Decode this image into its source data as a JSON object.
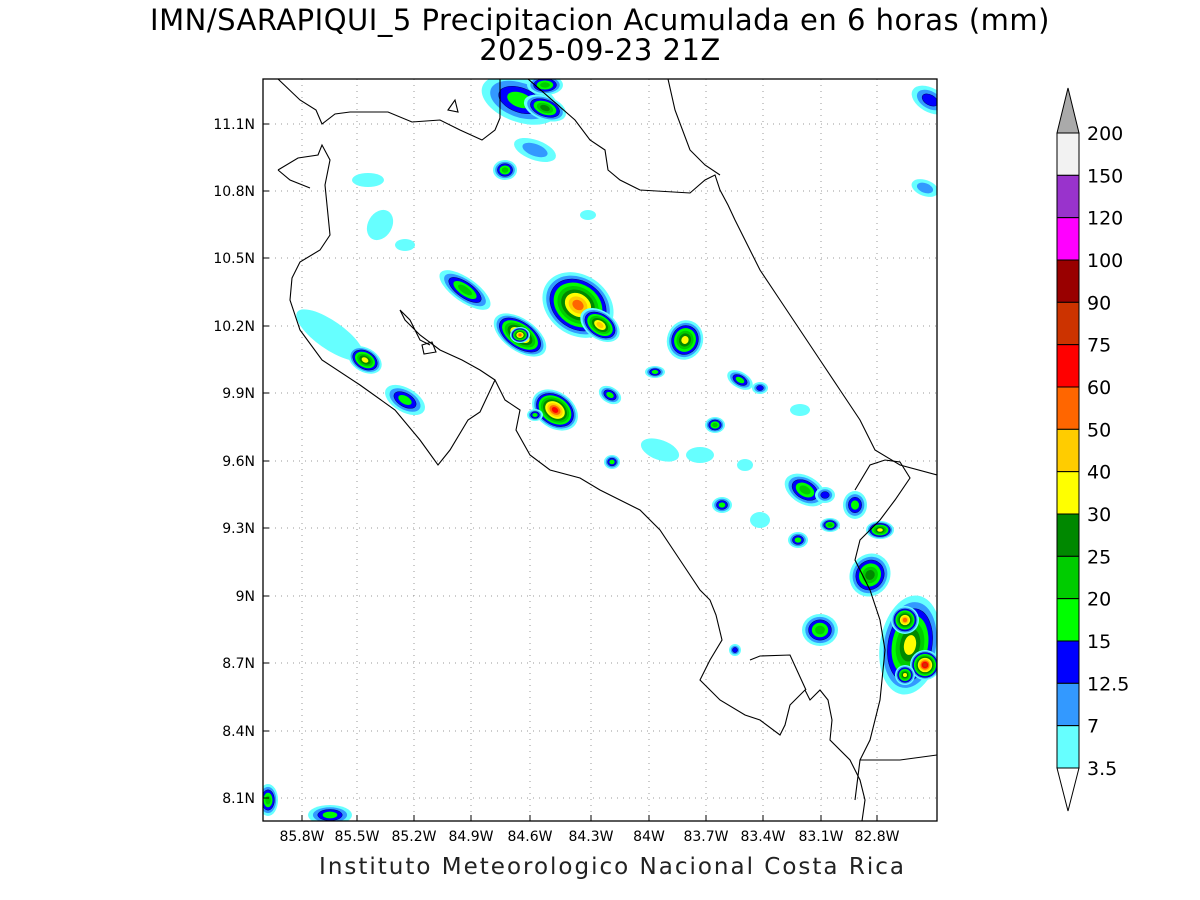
{
  "title": {
    "line1": "IMN/SARAPIQUI_5 Precipitacion Acumulada en 6 horas (mm)",
    "line2": "2025-09-23 21Z"
  },
  "footer": "Instituto Meteorologico Nacional Costa Rica",
  "map": {
    "lat_labels": [
      "11.1N",
      "10.8N",
      "10.5N",
      "10.2N",
      "9.9N",
      "9.6N",
      "9.3N",
      "9N",
      "8.7N",
      "8.4N",
      "8.1N"
    ],
    "lon_labels": [
      "85.8W",
      "85.5W",
      "85.2W",
      "84.9W",
      "84.6W",
      "84.3W",
      "84W",
      "83.7W",
      "83.4W",
      "83.1W",
      "82.8W"
    ],
    "grid": "dotted"
  },
  "colorbar": {
    "levels": [
      "3.5",
      "7",
      "12.5",
      "15",
      "20",
      "25",
      "30",
      "40",
      "50",
      "60",
      "75",
      "90",
      "100",
      "120",
      "150",
      "200"
    ],
    "colors": [
      "#ffffff",
      "#66ffff",
      "#3399ff",
      "#0000ff",
      "#00ff00",
      "#00cc00",
      "#008800",
      "#ffff00",
      "#ffcc00",
      "#ff6600",
      "#ff0000",
      "#cc3300",
      "#990000",
      "#ff00ff",
      "#9933cc",
      "#f2f2f2",
      "#aaaaaa"
    ]
  }
}
